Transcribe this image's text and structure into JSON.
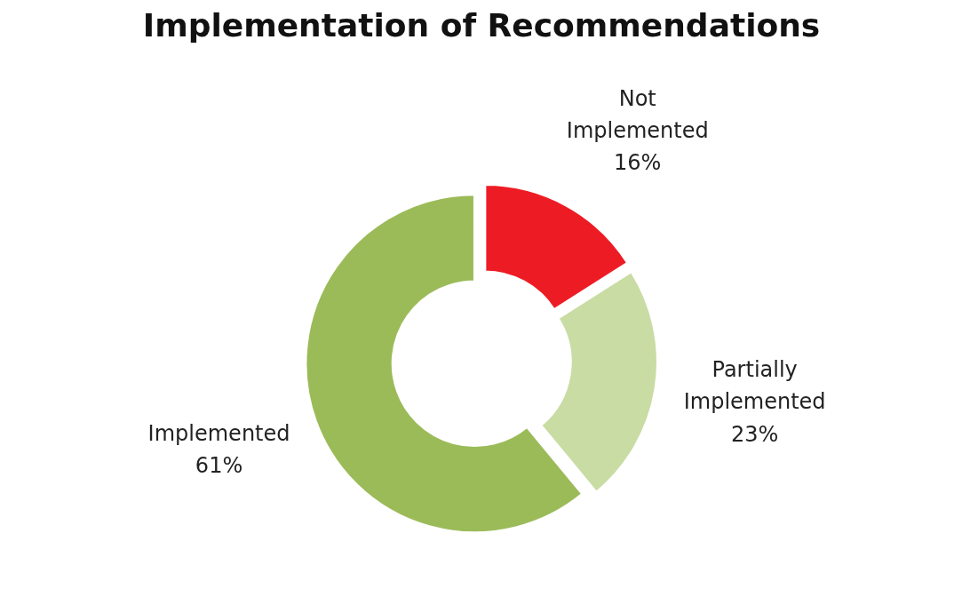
{
  "chart_data": {
    "type": "donut",
    "title": "Implementation of Recommendations",
    "categories": [
      "Not\nImplemented",
      "Partially\nImplemented",
      "Implemented"
    ],
    "values": [
      16,
      23,
      61
    ],
    "colors": [
      "#ed1c24",
      "#c9dca4",
      "#9bbb59"
    ],
    "value_labels": [
      "16%",
      "23%",
      "61%"
    ]
  }
}
